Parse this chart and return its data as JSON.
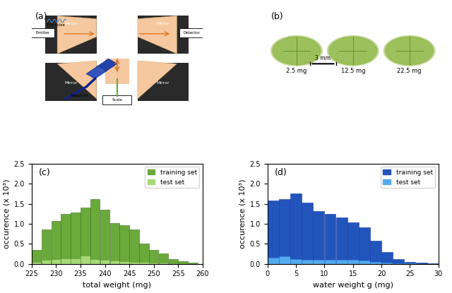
{
  "panel_c": {
    "label": "(c)",
    "xlabel": "total weight (mg)",
    "ylabel": "occurence (x 10³)",
    "xlim": [
      225,
      260
    ],
    "ylim": [
      0,
      2.5
    ],
    "yticks": [
      0,
      0.5,
      1.0,
      1.5,
      2.0,
      2.5
    ],
    "bin_edges": [
      225,
      227,
      229,
      231,
      233,
      235,
      237,
      239,
      241,
      243,
      245,
      247,
      249,
      251,
      253,
      255,
      257,
      259
    ],
    "train_values": [
      0.35,
      0.85,
      1.07,
      1.25,
      1.28,
      1.4,
      1.62,
      1.35,
      1.01,
      0.96,
      0.85,
      0.5,
      0.34,
      0.25,
      0.12,
      0.06,
      0.02
    ],
    "test_values": [
      0.04,
      0.1,
      0.12,
      0.13,
      0.13,
      0.2,
      0.12,
      0.1,
      0.08,
      0.07,
      0.05,
      0.04,
      0.03,
      0.02,
      0.01,
      0.005,
      0.0
    ],
    "train_color": "#6aaa3a",
    "test_color": "#a8d878",
    "legend_labels": [
      "training set",
      "test set"
    ]
  },
  "panel_d": {
    "label": "(d)",
    "xlabel": "water weight g (mg)",
    "ylabel": "occurence (x 10³)",
    "xlim": [
      0,
      30
    ],
    "ylim": [
      0,
      2.5
    ],
    "yticks": [
      0,
      0.5,
      1.0,
      1.5,
      2.0,
      2.5
    ],
    "bin_edges": [
      0,
      2,
      4,
      6,
      8,
      10,
      12,
      14,
      16,
      18,
      20,
      22,
      24,
      26,
      28,
      30
    ],
    "train_values": [
      1.58,
      1.62,
      1.75,
      1.52,
      1.32,
      1.25,
      1.16,
      1.03,
      0.91,
      0.57,
      0.3,
      0.12,
      0.05,
      0.02,
      0.01
    ],
    "test_values": [
      0.15,
      0.18,
      0.12,
      0.1,
      0.1,
      0.1,
      0.09,
      0.09,
      0.08,
      0.04,
      0.02,
      0.01,
      0.005,
      0.0,
      0.0
    ],
    "train_color": "#2255bb",
    "test_color": "#55aaee",
    "legend_labels": [
      "training set",
      "test set"
    ]
  },
  "panel_a_label": "(a)",
  "panel_b_label": "(b)",
  "leaf_labels": [
    "2.5 mg",
    "12.5 mg",
    "22.5 mg"
  ],
  "scale_bar_text": "3 mm"
}
